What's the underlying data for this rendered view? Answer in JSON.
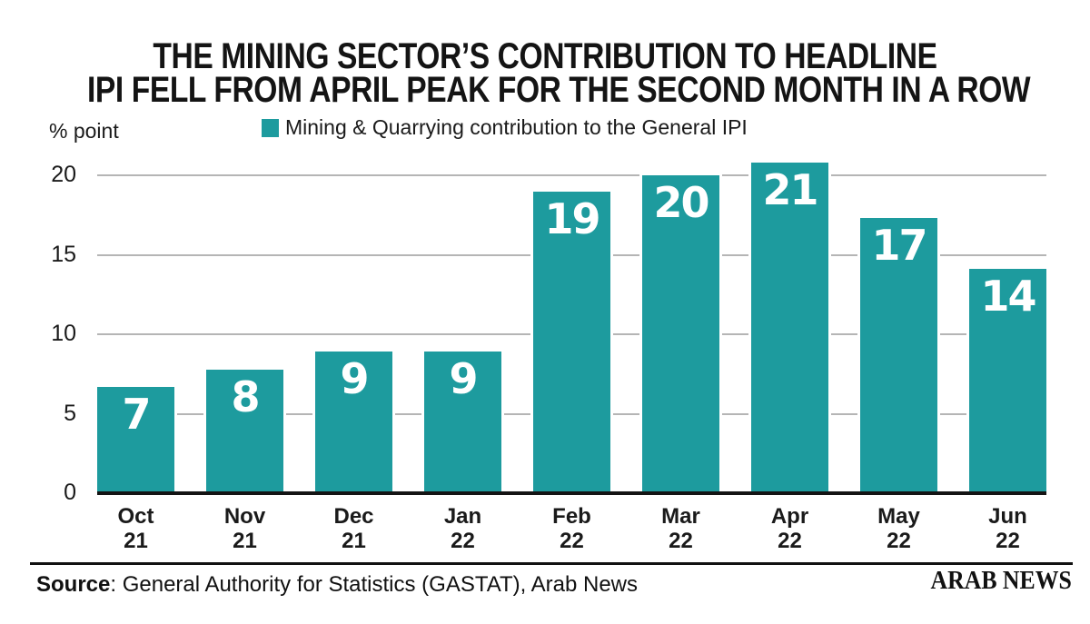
{
  "header": {
    "title_line1": "THE MINING SECTOR’S CONTRIBUTION TO HEADLINE",
    "title_line2": "IPI FELL FROM APRIL PEAK FOR THE SECOND MONTH IN A ROW"
  },
  "legend": {
    "label": "Mining & Quarrying contribution to the General IPI",
    "swatch_color": "#1d9b9e"
  },
  "chart_data": {
    "type": "bar",
    "title": "THE MINING SECTOR’S CONTRIBUTION TO HEADLINE IPI FELL FROM APRIL PEAK FOR THE SECOND MONTH IN A ROW",
    "series_name": "Mining & Quarrying contribution to the General IPI",
    "categories": [
      {
        "month": "Oct",
        "year": "21"
      },
      {
        "month": "Nov",
        "year": "21"
      },
      {
        "month": "Dec",
        "year": "21"
      },
      {
        "month": "Jan",
        "year": "22"
      },
      {
        "month": "Feb",
        "year": "22"
      },
      {
        "month": "Mar",
        "year": "22"
      },
      {
        "month": "Apr",
        "year": "22"
      },
      {
        "month": "May",
        "year": "22"
      },
      {
        "month": "Jun",
        "year": "22"
      }
    ],
    "values": [
      7,
      8,
      9,
      9,
      19,
      20,
      21,
      17,
      14
    ],
    "values_plotted": [
      6.7,
      7.8,
      8.9,
      8.9,
      19.0,
      20.0,
      20.8,
      17.3,
      14.1
    ],
    "ylabel": "% point",
    "yticks": [
      0,
      5,
      10,
      15,
      20
    ],
    "ylim": [
      0,
      21.4
    ],
    "grid": true,
    "legend_position": "top",
    "bar_color": "#1d9b9e",
    "value_label_color": "#ffffff",
    "gridline_color": "#b5b5b5",
    "axis_color": "#141414"
  },
  "footer": {
    "source_label": "Source",
    "source_rest": ": General Authority for Statistics (GASTAT), Arab News",
    "brand": "ARAB NEWS"
  }
}
